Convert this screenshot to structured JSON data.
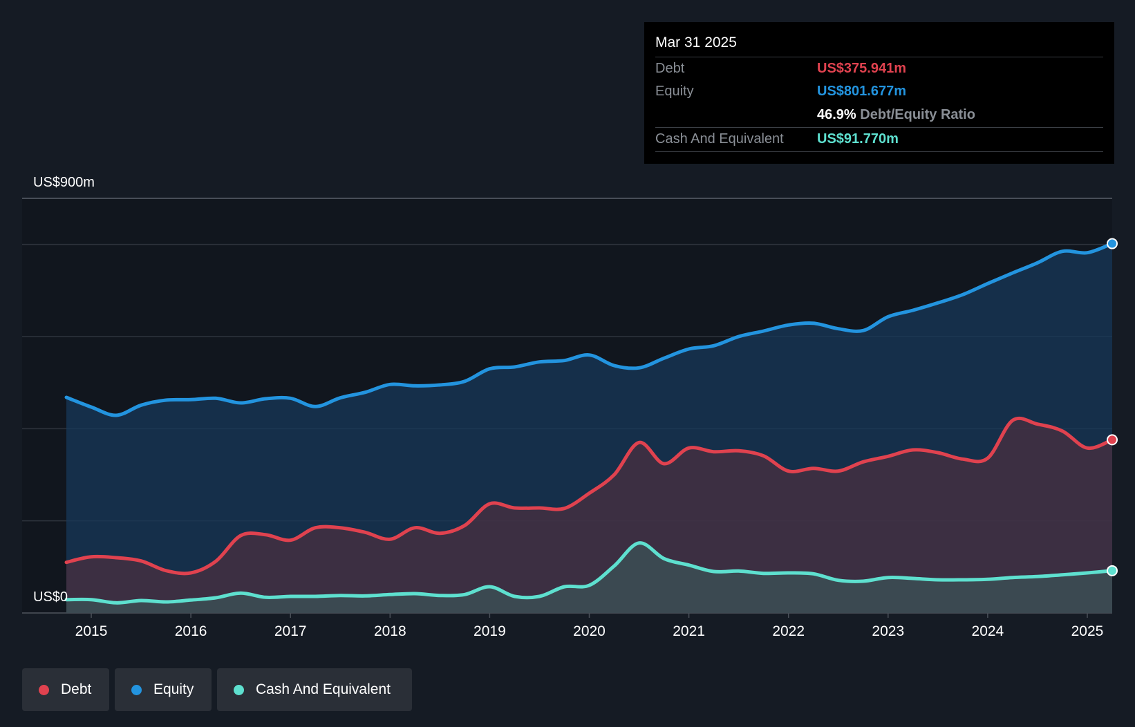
{
  "tooltip": {
    "date": "Mar 31 2025",
    "debt_label": "Debt",
    "debt_value": "US$375.941m",
    "equity_label": "Equity",
    "equity_value": "US$801.677m",
    "ratio_value": "46.9%",
    "ratio_label": "Debt/Equity Ratio",
    "cash_label": "Cash And Equivalent",
    "cash_value": "US$91.770m"
  },
  "legend": {
    "debt": "Debt",
    "equity": "Equity",
    "cash": "Cash And Equivalent"
  },
  "colors": {
    "debt": "#e0424f",
    "equity": "#2394df",
    "cash": "#5ee0cf",
    "background": "#151b24"
  },
  "chart_data": {
    "type": "area",
    "title": "",
    "xlabel": "",
    "ylabel": "",
    "y_axis_labels": [
      "US$900m",
      "US$0"
    ],
    "ylim": [
      0,
      900
    ],
    "xlim": [
      2014.75,
      2025.25
    ],
    "x_ticks": [
      "2015",
      "2016",
      "2017",
      "2018",
      "2019",
      "2020",
      "2021",
      "2022",
      "2023",
      "2024",
      "2025"
    ],
    "series": [
      {
        "name": "Equity",
        "x": [
          2014.75,
          2015.0,
          2015.25,
          2015.5,
          2015.75,
          2016.0,
          2016.25,
          2016.5,
          2016.75,
          2017.0,
          2017.25,
          2017.5,
          2017.75,
          2018.0,
          2018.25,
          2018.5,
          2018.75,
          2019.0,
          2019.25,
          2019.5,
          2019.75,
          2020.0,
          2020.25,
          2020.5,
          2020.75,
          2021.0,
          2021.25,
          2021.5,
          2021.75,
          2022.0,
          2022.25,
          2022.5,
          2022.75,
          2023.0,
          2023.25,
          2023.5,
          2023.75,
          2024.0,
          2024.25,
          2024.5,
          2024.75,
          2025.0,
          2025.25
        ],
        "values": [
          468,
          447,
          429,
          451,
          462,
          463,
          466,
          456,
          465,
          466,
          448,
          467,
          479,
          496,
          493,
          495,
          503,
          530,
          534,
          545,
          548,
          560,
          537,
          532,
          553,
          573,
          580,
          600,
          612,
          625,
          629,
          617,
          613,
          643,
          657,
          673,
          691,
          715,
          738,
          760,
          785,
          782,
          801.677
        ]
      },
      {
        "name": "Debt",
        "x": [
          2014.75,
          2015.0,
          2015.25,
          2015.5,
          2015.75,
          2016.0,
          2016.25,
          2016.5,
          2016.75,
          2017.0,
          2017.25,
          2017.5,
          2017.75,
          2018.0,
          2018.25,
          2018.5,
          2018.75,
          2019.0,
          2019.25,
          2019.5,
          2019.75,
          2020.0,
          2020.25,
          2020.5,
          2020.75,
          2021.0,
          2021.25,
          2021.5,
          2021.75,
          2022.0,
          2022.25,
          2022.5,
          2022.75,
          2023.0,
          2023.25,
          2023.5,
          2023.75,
          2024.0,
          2024.25,
          2024.5,
          2024.75,
          2025.0,
          2025.25
        ],
        "values": [
          110,
          122,
          120,
          113,
          92,
          87,
          112,
          168,
          170,
          158,
          185,
          185,
          175,
          160,
          185,
          173,
          190,
          237,
          228,
          228,
          227,
          260,
          300,
          370,
          324,
          358,
          350,
          352,
          341,
          308,
          314,
          308,
          328,
          340,
          354,
          348,
          334,
          336,
          418,
          410,
          395,
          358,
          375.941
        ]
      },
      {
        "name": "Cash And Equivalent",
        "x": [
          2014.75,
          2015.0,
          2015.25,
          2015.5,
          2015.75,
          2016.0,
          2016.25,
          2016.5,
          2016.75,
          2017.0,
          2017.25,
          2017.5,
          2017.75,
          2018.0,
          2018.25,
          2018.5,
          2018.75,
          2019.0,
          2019.25,
          2019.5,
          2019.75,
          2020.0,
          2020.25,
          2020.5,
          2020.75,
          2021.0,
          2021.25,
          2021.5,
          2021.75,
          2022.0,
          2022.25,
          2022.5,
          2022.75,
          2023.0,
          2023.25,
          2023.5,
          2023.75,
          2024.0,
          2024.25,
          2024.5,
          2024.75,
          2025.0,
          2025.25
        ],
        "values": [
          29,
          29,
          22,
          27,
          24,
          28,
          33,
          43,
          34,
          36,
          36,
          38,
          37,
          40,
          42,
          38,
          40,
          57,
          36,
          36,
          57,
          60,
          102,
          152,
          118,
          104,
          90,
          91,
          86,
          87,
          85,
          71,
          69,
          77,
          75,
          72,
          72,
          73,
          77,
          79,
          83,
          87,
          91.77
        ]
      }
    ]
  }
}
